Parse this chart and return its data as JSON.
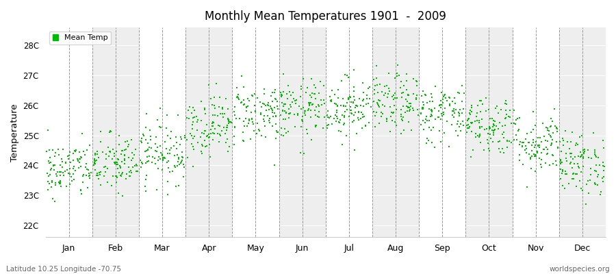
{
  "title": "Monthly Mean Temperatures 1901  -  2009",
  "ylabel": "Temperature",
  "subtitle_left": "Latitude 10.25 Longitude -70.75",
  "subtitle_right": "worldspecies.org",
  "legend_label": "Mean Temp",
  "marker_color": "#00BB00",
  "background_color": "#ffffff",
  "band_color_even": "#ffffff",
  "band_color_odd": "#eeeeee",
  "ytick_labels": [
    "22C",
    "23C",
    "24C",
    "25C",
    "26C",
    "27C",
    "28C"
  ],
  "ytick_values": [
    22,
    23,
    24,
    25,
    26,
    27,
    28
  ],
  "ylim": [
    21.6,
    28.6
  ],
  "months": [
    "Jan",
    "Feb",
    "Mar",
    "Apr",
    "May",
    "Jun",
    "Jul",
    "Aug",
    "Sep",
    "Oct",
    "Nov",
    "Dec"
  ],
  "years": 109,
  "start_year": 1901,
  "end_year": 2009,
  "month_means": [
    23.85,
    24.05,
    24.45,
    25.35,
    25.75,
    25.85,
    25.95,
    26.05,
    25.75,
    25.35,
    24.75,
    24.05
  ],
  "month_stds": [
    0.48,
    0.5,
    0.52,
    0.52,
    0.52,
    0.5,
    0.5,
    0.5,
    0.5,
    0.5,
    0.52,
    0.52
  ],
  "month_mins": [
    22.8,
    22.6,
    22.9,
    23.6,
    24.0,
    24.3,
    24.4,
    24.4,
    24.2,
    23.8,
    23.0,
    22.4
  ],
  "month_maxs": [
    25.6,
    26.2,
    26.3,
    27.3,
    27.5,
    27.3,
    27.6,
    27.7,
    27.5,
    27.1,
    26.5,
    26.4
  ]
}
